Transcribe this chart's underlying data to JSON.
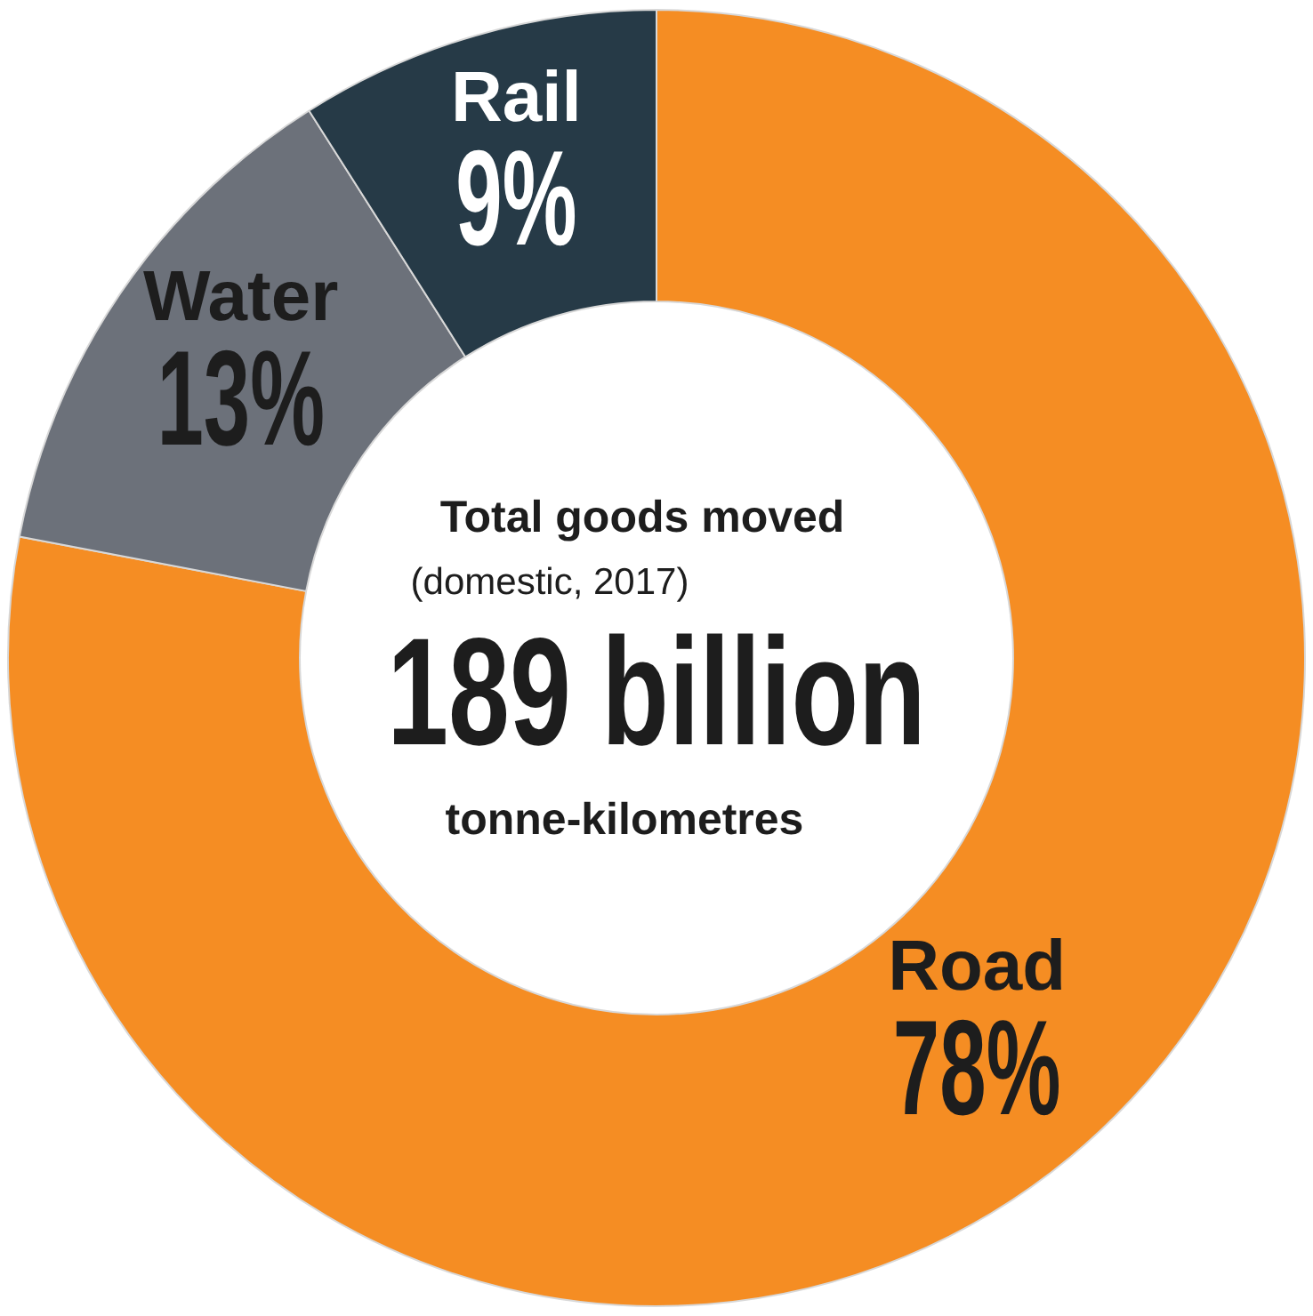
{
  "chart_data": {
    "type": "donut",
    "title": "Total goods moved",
    "subtitle": "(domestic, 2017)",
    "annotations": [
      "189 billion",
      "tonne-kilometres"
    ],
    "categories": [
      "Road",
      "Water",
      "Rail"
    ],
    "values": [
      78,
      13,
      9
    ],
    "colors": [
      "#f58d23",
      "#6c717a",
      "#263a47"
    ],
    "value_labels": [
      "78%",
      "13%",
      "9%"
    ],
    "legend": false
  }
}
